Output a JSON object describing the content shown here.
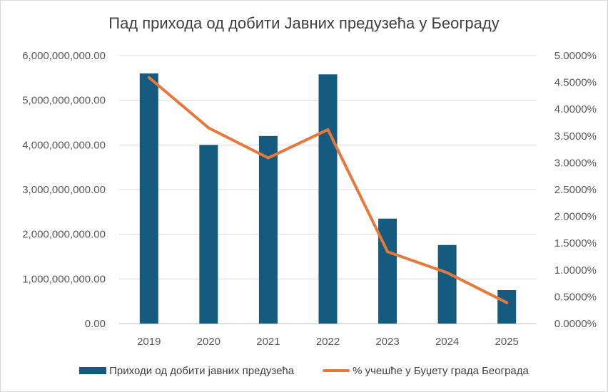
{
  "chart_data": {
    "type": "bar+line",
    "title": "Пад прихода од добити Јавних предузећа у Београду",
    "categories": [
      "2019",
      "2020",
      "2021",
      "2022",
      "2023",
      "2024",
      "2025"
    ],
    "series": [
      {
        "name": "Приходи од добити јавних предузећа",
        "type": "bar",
        "axis": "left",
        "color": "#145b7f",
        "values": [
          5600000000,
          4000000000,
          4200000000,
          5580000000,
          2350000000,
          1760000000,
          750000000
        ]
      },
      {
        "name": "% учешће у Буџету града Београда",
        "type": "line",
        "axis": "right",
        "color": "#e8783a",
        "values": [
          0.0459,
          0.0365,
          0.0309,
          0.0362,
          0.0134,
          0.0095,
          0.0039
        ]
      }
    ],
    "y_left": {
      "ylim": [
        0,
        6000000000
      ],
      "ticks": [
        0,
        1000000000,
        2000000000,
        3000000000,
        4000000000,
        5000000000,
        6000000000
      ],
      "tick_labels": [
        "0.00",
        "1,000,000,000.00",
        "2,000,000,000.00",
        "3,000,000,000.00",
        "4,000,000,000.00",
        "5,000,000,000.00",
        "6,000,000,000.00"
      ]
    },
    "y_right": {
      "ylim": [
        0,
        0.05
      ],
      "ticks": [
        0,
        0.005,
        0.01,
        0.015,
        0.02,
        0.025,
        0.03,
        0.035,
        0.04,
        0.045,
        0.05
      ],
      "tick_labels": [
        "0.0000%",
        "0.5000%",
        "1.0000%",
        "1.5000%",
        "2.0000%",
        "2.5000%",
        "3.0000%",
        "3.5000%",
        "4.0000%",
        "4.5000%",
        "5.0000%"
      ]
    },
    "grid": true,
    "legend": "bottom"
  }
}
